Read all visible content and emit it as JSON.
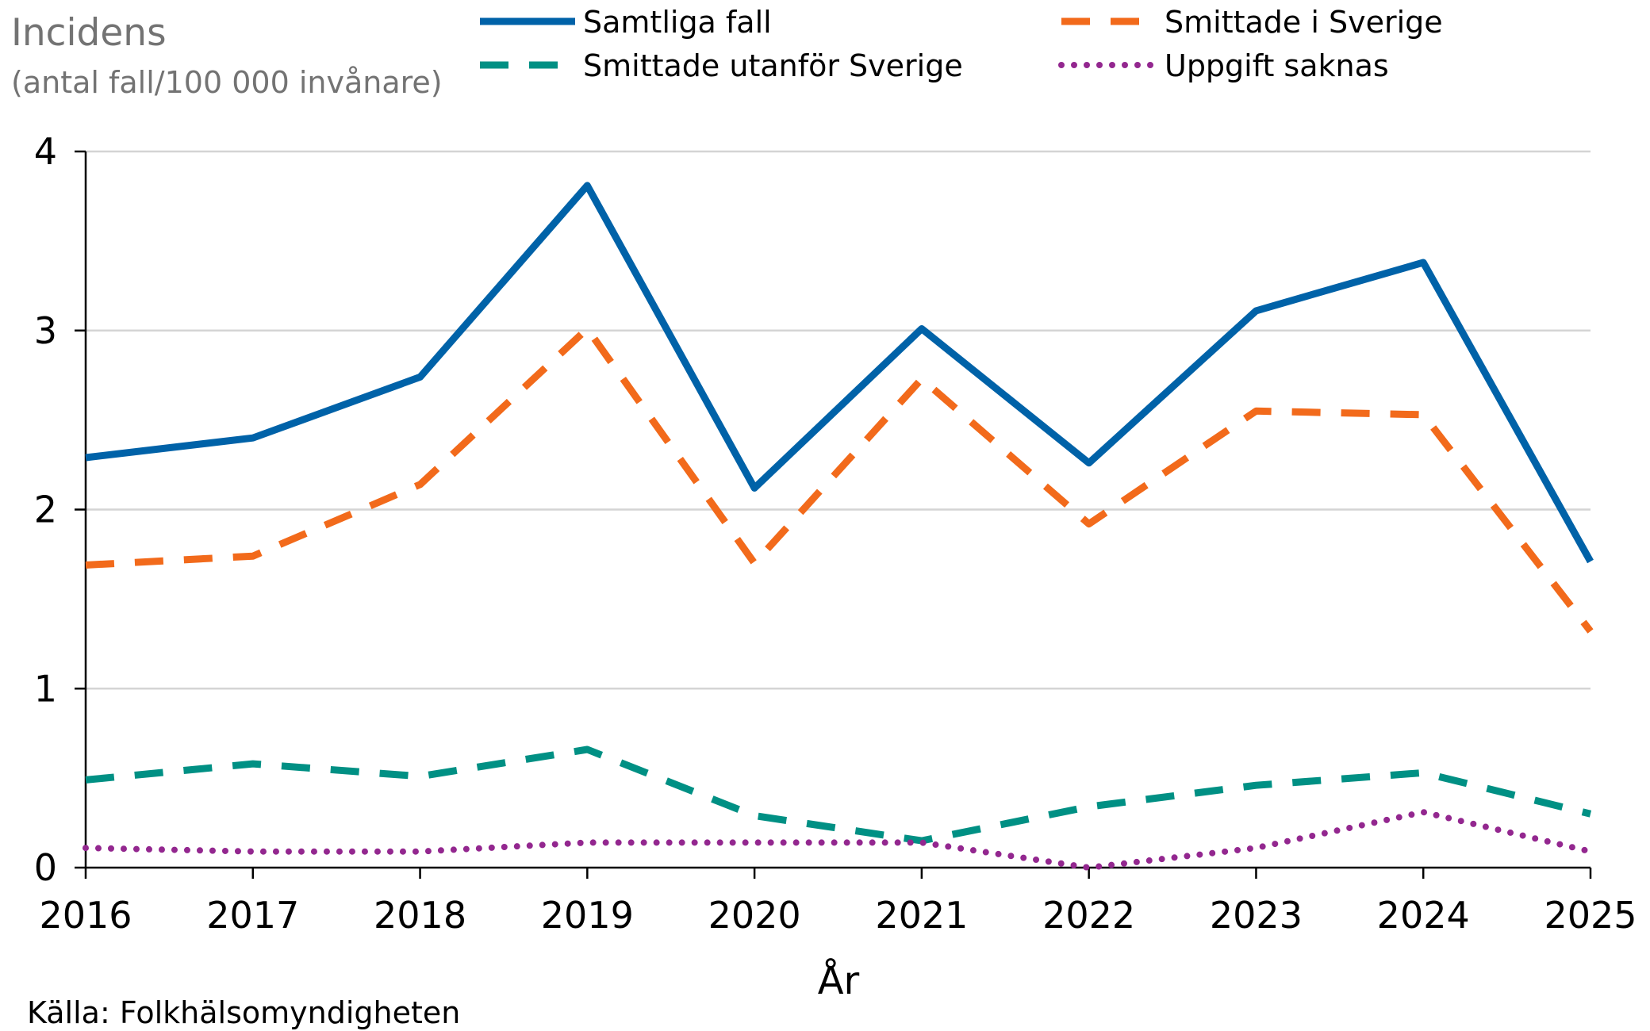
{
  "chart_data": {
    "type": "line",
    "ytitle_line1": "Incidens",
    "ytitle_line2": "(antal fall/100 000 invånare)",
    "xlabel": "År",
    "source": "Källa: Folkhälsomyndigheten",
    "ylim": [
      0,
      4
    ],
    "yticks": [
      "0",
      "1",
      "2",
      "3",
      "4"
    ],
    "categories": [
      "2016",
      "2017",
      "2018",
      "2019",
      "2020",
      "2021",
      "2022",
      "2023",
      "2024",
      "2025"
    ],
    "grid": true,
    "legend_position": "top",
    "series": [
      {
        "name": "Samtliga fall",
        "color": "#0062A8",
        "style": "solid",
        "values": [
          2.29,
          2.4,
          2.74,
          3.81,
          2.12,
          3.01,
          2.26,
          3.11,
          3.38,
          1.71
        ]
      },
      {
        "name": "Smittade i Sverige",
        "color": "#F26A1B",
        "style": "dashed",
        "values": [
          1.69,
          1.74,
          2.14,
          3.01,
          1.7,
          2.73,
          1.92,
          2.55,
          2.53,
          1.32
        ]
      },
      {
        "name": "Smittade utanför Sverige",
        "color": "#009084",
        "style": "dashed",
        "values": [
          0.49,
          0.58,
          0.51,
          0.66,
          0.29,
          0.15,
          0.34,
          0.46,
          0.53,
          0.3
        ]
      },
      {
        "name": "Uppgift saknas",
        "color": "#93278F",
        "style": "dotted",
        "values": [
          0.11,
          0.09,
          0.09,
          0.14,
          0.14,
          0.14,
          0.0,
          0.11,
          0.31,
          0.09
        ]
      }
    ]
  }
}
